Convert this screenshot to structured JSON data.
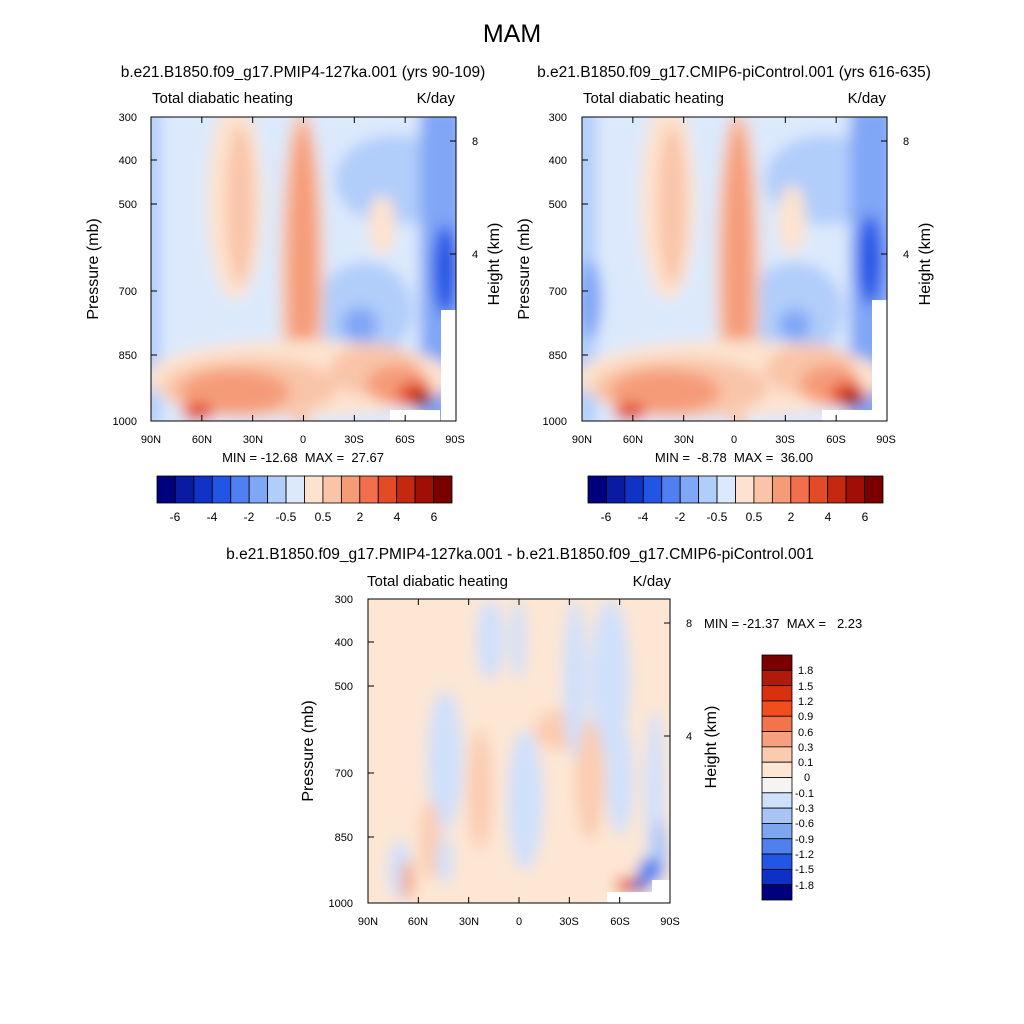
{
  "figure_title": "MAM",
  "chart_data": [
    {
      "type": "heatmap",
      "subtitle": "b.e21.B1850.f09_g17.PMIP4-127ka.001 (yrs 90-109)",
      "left_label": "Total diabatic heating",
      "right_label": "K/day",
      "ylabel": "Pressure (mb)",
      "ylabel_right": "Height (km)",
      "x_ticks": [
        "90N",
        "60N",
        "30N",
        "0",
        "30S",
        "60S",
        "90S"
      ],
      "y_ticks": [
        "300",
        "400",
        "500",
        "700",
        "850",
        "1000"
      ],
      "height_ticks": [
        "8",
        "4"
      ],
      "xlim": [
        90,
        -90
      ],
      "ylim": [
        1000,
        300
      ],
      "min_max": "MIN = -12.68  MAX =  27.67",
      "min": -12.68,
      "max": 27.67,
      "colorbar_levels": [
        -6,
        -5,
        -4,
        -3,
        -2,
        -1,
        -0.5,
        0,
        0.5,
        1,
        2,
        3,
        4,
        5,
        6
      ],
      "colorbar_labels": [
        "-6",
        "-4",
        "-2",
        "-0.5",
        "0.5",
        "2",
        "4",
        "6"
      ],
      "colorbar_colors": [
        "#00007f",
        "#0a1aa3",
        "#0f33c6",
        "#2155e6",
        "#4f7ff0",
        "#80a6f6",
        "#b1cdfa",
        "#dce9fc",
        "#fde3cf",
        "#f9c4a8",
        "#f59b78",
        "#f26e4d",
        "#e34a26",
        "#c4280e",
        "#a10e05",
        "#7a0000"
      ]
    },
    {
      "type": "heatmap",
      "subtitle": "b.e21.B1850.f09_g17.CMIP6-piControl.001 (yrs 616-635)",
      "left_label": "Total diabatic heating",
      "right_label": "K/day",
      "ylabel": "Pressure (mb)",
      "ylabel_right": "Height (km)",
      "x_ticks": [
        "90N",
        "60N",
        "30N",
        "0",
        "30S",
        "60S",
        "90S"
      ],
      "y_ticks": [
        "300",
        "400",
        "500",
        "700",
        "850",
        "1000"
      ],
      "height_ticks": [
        "8",
        "4"
      ],
      "xlim": [
        90,
        -90
      ],
      "ylim": [
        1000,
        300
      ],
      "min_max": "MIN =  -8.78  MAX =  36.00",
      "min": -8.78,
      "max": 36.0,
      "colorbar_levels": [
        -6,
        -5,
        -4,
        -3,
        -2,
        -1,
        -0.5,
        0,
        0.5,
        1,
        2,
        3,
        4,
        5,
        6
      ],
      "colorbar_labels": [
        "-6",
        "-4",
        "-2",
        "-0.5",
        "0.5",
        "2",
        "4",
        "6"
      ],
      "colorbar_colors": [
        "#00007f",
        "#0a1aa3",
        "#0f33c6",
        "#2155e6",
        "#4f7ff0",
        "#80a6f6",
        "#b1cdfa",
        "#dce9fc",
        "#fde3cf",
        "#f9c4a8",
        "#f59b78",
        "#f26e4d",
        "#e34a26",
        "#c4280e",
        "#a10e05",
        "#7a0000"
      ]
    },
    {
      "type": "heatmap",
      "subtitle": "b.e21.B1850.f09_g17.PMIP4-127ka.001 - b.e21.B1850.f09_g17.CMIP6-piControl.001",
      "left_label": "Total diabatic heating",
      "right_label": "K/day",
      "ylabel": "Pressure (mb)",
      "ylabel_right": "Height (km)",
      "x_ticks": [
        "90N",
        "60N",
        "30N",
        "0",
        "30S",
        "60S",
        "90S"
      ],
      "y_ticks": [
        "300",
        "400",
        "500",
        "700",
        "850",
        "1000"
      ],
      "height_ticks": [
        "8",
        "4"
      ],
      "xlim": [
        90,
        -90
      ],
      "ylim": [
        1000,
        300
      ],
      "min_max": "MIN = -21.37  MAX =   2.23",
      "min": -21.37,
      "max": 2.23,
      "colorbar_labels": [
        "1.8",
        "1.5",
        "1.2",
        "0.9",
        "0.6",
        "0.3",
        "0.1",
        "0",
        "-0.1",
        "-0.3",
        "-0.6",
        "-0.9",
        "-1.2",
        "-1.5",
        "-1.8"
      ],
      "colorbar_colors": [
        "#7a0000",
        "#b01a0a",
        "#d9300f",
        "#f24d1f",
        "#f3734b",
        "#f7a07e",
        "#fbcbb0",
        "#fde6d3",
        "#f4f4f4",
        "#cfe0fb",
        "#a9c5f6",
        "#7da6f1",
        "#4f80ee",
        "#2456e6",
        "#0f30c6",
        "#00007f"
      ]
    }
  ]
}
